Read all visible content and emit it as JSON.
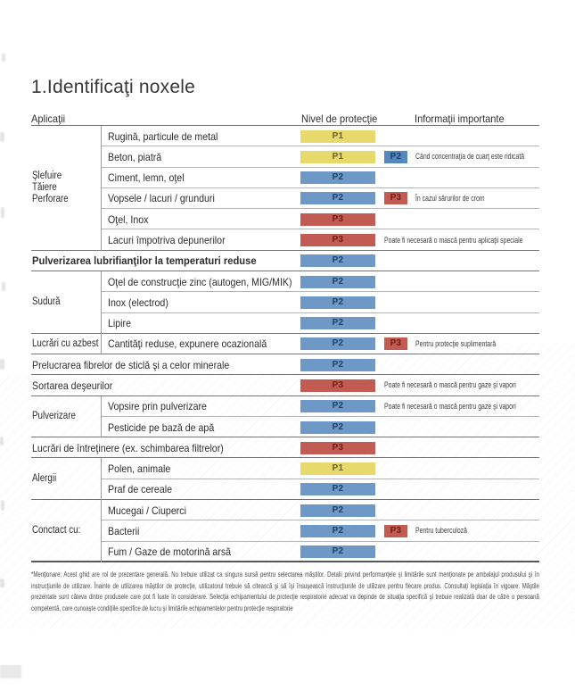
{
  "page": {
    "title": "1.Identificaţi noxele"
  },
  "table": {
    "headers": {
      "applications": "Aplicaţii",
      "protection": "Nivel de protecţie",
      "info": "Informaţii importante"
    },
    "levels": {
      "p1": {
        "bg": "#e8d96c",
        "fg": "#6b622a"
      },
      "p2": {
        "bg": "#6e99c6",
        "fg": "#1c3f63",
        "bg_small": "#5688c0"
      },
      "p3": {
        "bg": "#c25b51",
        "fg": "#6e1d16",
        "bg_small": "#c25b51"
      }
    },
    "groups": [
      {
        "label_lines": [
          "Şlefuire",
          "Tăiere",
          "Perforare"
        ],
        "start": 0,
        "end": 5
      },
      {
        "label_lines": [
          "Sudură"
        ],
        "start": 7,
        "end": 9
      },
      {
        "label_lines": [
          "Lucrări cu azbest"
        ],
        "start": 10,
        "end": 10
      },
      {
        "label_lines": [
          "Pulverizare"
        ],
        "start": 13,
        "end": 14
      },
      {
        "label_lines": [
          "Alergii"
        ],
        "start": 16,
        "end": 17
      },
      {
        "label_lines": [
          "Conctact cu:"
        ],
        "start": 18,
        "end": 20
      }
    ],
    "rows": [
      {
        "label": "Rugină, particule de metal",
        "badges": [
          {
            "label": "P1",
            "level": "p1",
            "small": false
          }
        ],
        "note": "",
        "sep": "sub"
      },
      {
        "label": "Beton, piatră",
        "badges": [
          {
            "label": "P1",
            "level": "p1",
            "small": false
          },
          {
            "label": "P2",
            "level": "p2",
            "small": true
          }
        ],
        "note": "Când concentraţia de cuarţ este ridicată",
        "sep": "sub"
      },
      {
        "label": "Ciment, lemn, oţel",
        "badges": [
          {
            "label": "P2",
            "level": "p2",
            "small": false
          }
        ],
        "note": "",
        "sep": "sub"
      },
      {
        "label": "Vopsele / lacuri / grunduri",
        "badges": [
          {
            "label": "P2",
            "level": "p2",
            "small": false
          },
          {
            "label": "P3",
            "level": "p3",
            "small": true
          }
        ],
        "note": "În cazul sărurilor de crom",
        "sep": "sub"
      },
      {
        "label": "Oţel, Inox",
        "badges": [
          {
            "label": "P3",
            "level": "p3",
            "small": false
          }
        ],
        "note": "",
        "sep": "sub"
      },
      {
        "label": "Lacuri împotriva depunerilor",
        "badges": [
          {
            "label": "P3",
            "level": "p3",
            "small": false
          }
        ],
        "note": "Poate fi necesară o mască pentru aplicaţii speciale",
        "sep": "full"
      },
      {
        "label": "Pulverizarea lubrifianţilor la temperaturi reduse",
        "full_width": true,
        "bold": true,
        "badges": [
          {
            "label": "P2",
            "level": "p2",
            "small": false
          }
        ],
        "note": "",
        "sep": "full"
      },
      {
        "label": "Oţel de construcţie zinc (autogen, MIG/MIK)",
        "badges": [
          {
            "label": "P2",
            "level": "p2",
            "small": false
          }
        ],
        "note": "",
        "sep": "sub"
      },
      {
        "label": "Inox (electrod)",
        "badges": [
          {
            "label": "P2",
            "level": "p2",
            "small": false
          }
        ],
        "note": "",
        "sep": "sub"
      },
      {
        "label": "Lipire",
        "badges": [
          {
            "label": "P2",
            "level": "p2",
            "small": false
          }
        ],
        "note": "",
        "sep": "full"
      },
      {
        "label": "Cantităţi reduse, expunere ocazională",
        "badges": [
          {
            "label": "P2",
            "level": "p2",
            "small": false
          },
          {
            "label": "P3",
            "level": "p3",
            "small": true
          }
        ],
        "note": "Pentru protecţie suplimentară",
        "sep": "full"
      },
      {
        "label": "Prelucrarea fibrelor de sticlă şi a celor minerale",
        "full_width": true,
        "badges": [
          {
            "label": "P2",
            "level": "p2",
            "small": false
          }
        ],
        "note": "",
        "sep": "full"
      },
      {
        "label": "Sortarea deşeurilor",
        "full_width": true,
        "badges": [
          {
            "label": "P3",
            "level": "p3",
            "small": false
          }
        ],
        "note": "Poate fi necesară o mască pentru gaze şi vapori",
        "sep": "full"
      },
      {
        "label": "Vopsire prin pulverizare",
        "badges": [
          {
            "label": "P2",
            "level": "p2",
            "small": false
          }
        ],
        "note": "Poate fi necesară o mască pentru gaze şi vapori",
        "sep": "sub"
      },
      {
        "label": "Pesticide pe bază de apă",
        "badges": [
          {
            "label": "P2",
            "level": "p2",
            "small": false
          }
        ],
        "note": "",
        "sep": "full"
      },
      {
        "label": "Lucrări de întreţinere (ex. schimbarea filtrelor)",
        "full_width": true,
        "badges": [
          {
            "label": "P3",
            "level": "p3",
            "small": false
          }
        ],
        "note": "",
        "sep": "full"
      },
      {
        "label": "Polen, animale",
        "badges": [
          {
            "label": "P1",
            "level": "p1",
            "small": false
          }
        ],
        "note": "",
        "sep": "sub"
      },
      {
        "label": "Praf de cereale",
        "badges": [
          {
            "label": "P2",
            "level": "p2",
            "small": false
          }
        ],
        "note": "",
        "sep": "full"
      },
      {
        "label": "Mucegai / Ciuperci",
        "badges": [
          {
            "label": "P2",
            "level": "p2",
            "small": false
          }
        ],
        "note": "",
        "sep": "sub"
      },
      {
        "label": "Bacterii",
        "badges": [
          {
            "label": "P2",
            "level": "p2",
            "small": false
          },
          {
            "label": "P3",
            "level": "p3",
            "small": true
          }
        ],
        "note": "Pentru tuberculoză",
        "sep": "sub"
      },
      {
        "label": "Fum / Gaze de motorină arsă",
        "badges": [
          {
            "label": "P2",
            "level": "p2",
            "small": false
          }
        ],
        "note": "",
        "sep": "thick"
      }
    ]
  },
  "footer": {
    "note": "*Menţionare: Acest ghid are rol de prezentare generală. Nu trebuie utilizat ca singura sursă pentru selectarea măştilor. Detalii privind performanţele şi limitările sunt menţionate pe ambalajul produsului şi în instrucţiunile de utilizare. Înainte de utilizarea măştilor de protecţie, utilizatorul trebuie să citească şi să îşi însuşească instrucţiunile de utilizare pentru fiecare produs. Consultaţi legislaţia în vigoare. Măştile prezentate sunt câteva dintre produsele care pot fi luate în considerare. Selecţia echipamentului de protecţie respiratorie adecvat va depinde de situaţia specifică şi trebuie realizată doar de către o persoană competentă, care cunoaşte condiţiile specifice de lucru şi limitările echipamentelor pentru protecţie respiratorie"
  }
}
